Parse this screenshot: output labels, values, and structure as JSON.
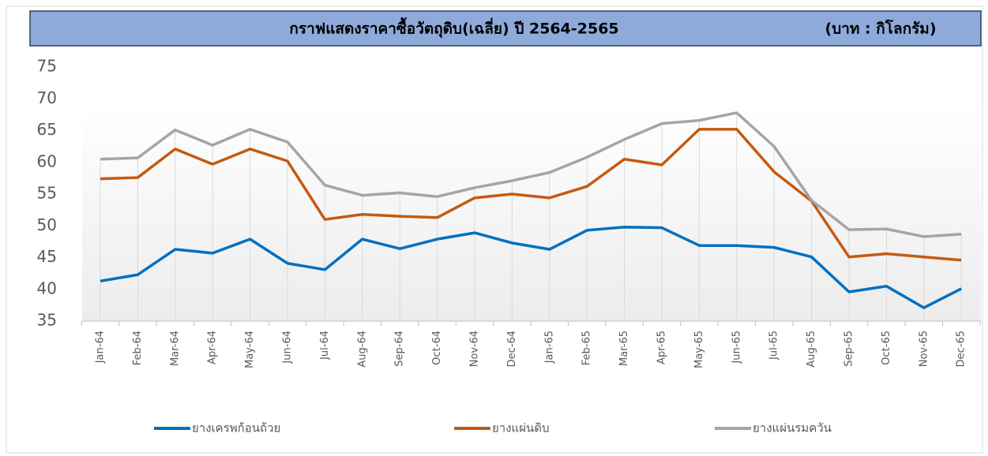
{
  "chart_data": {
    "type": "line",
    "title": "กราฟแสดงราคาซื้อวัตถุดิบ(เฉลี่ย) ปี 2564-2565",
    "unit": "(บาท : กิโลกรัม)",
    "categories": [
      "Jan-64",
      "Feb-64",
      "Mar-64",
      "Apr-64",
      "May-64",
      "Jun-64",
      "Jul-64",
      "Aug-64",
      "Sep-64",
      "Oct-64",
      "Nov-64",
      "Dec-64",
      "Jan-65",
      "Feb-65",
      "Mar-65",
      "Apr-65",
      "May-65",
      "Jun-65",
      "Jul-65",
      "Aug-65",
      "Sep-65",
      "Oct-65",
      "Nov-65",
      "Dec-65"
    ],
    "series": [
      {
        "name": "ยางเครพก้อนถ้วย",
        "color": "#0070c0",
        "values": [
          41.3,
          42.3,
          46.3,
          45.7,
          47.9,
          44.1,
          43.1,
          47.9,
          46.4,
          47.9,
          48.9,
          47.3,
          46.3,
          49.3,
          49.8,
          49.7,
          46.9,
          46.9,
          46.6,
          45.1,
          39.6,
          40.5,
          37.1,
          40.1
        ]
      },
      {
        "name": "ยางแผ่นดิบ",
        "color": "#c55a11",
        "values": [
          57.4,
          57.6,
          62.1,
          59.7,
          62.1,
          60.2,
          51.0,
          51.8,
          51.5,
          51.3,
          54.4,
          55.0,
          54.4,
          56.2,
          60.5,
          59.6,
          65.2,
          65.2,
          58.5,
          53.9,
          45.1,
          45.6,
          45.1,
          44.6
        ]
      },
      {
        "name": "ยางแผ่นรมควัน",
        "color": "#a5a5a5",
        "values": [
          60.5,
          60.7,
          65.1,
          62.7,
          65.2,
          63.2,
          56.4,
          54.8,
          55.2,
          54.6,
          56.0,
          57.1,
          58.4,
          60.8,
          63.6,
          66.1,
          66.6,
          67.8,
          62.5,
          54.0,
          49.4,
          49.5,
          48.3,
          48.7
        ]
      }
    ],
    "ylim": [
      35,
      75
    ],
    "yticks": [
      35,
      40,
      45,
      50,
      55,
      60,
      65,
      70,
      75
    ],
    "drop_lines": true
  }
}
